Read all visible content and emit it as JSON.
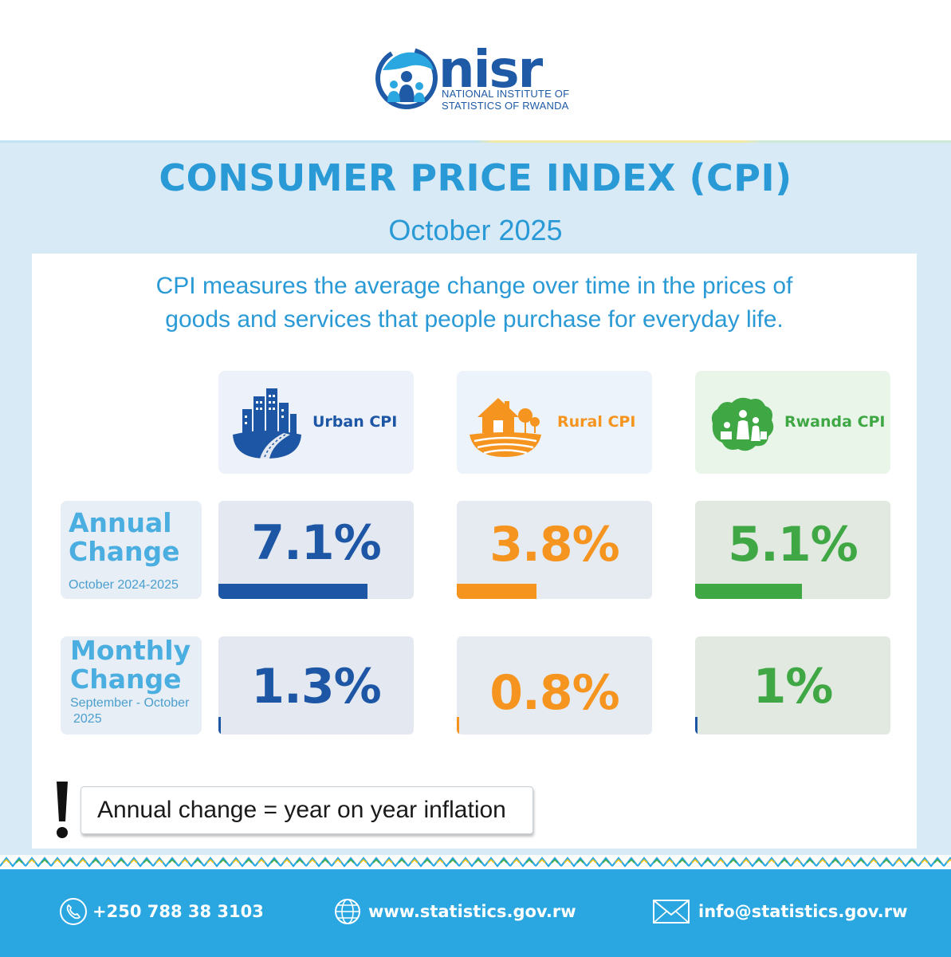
{
  "logo": {
    "wordmark": "nisr",
    "subtitle_line1": "NATIONAL INSTITUTE OF",
    "subtitle_line2": "STATISTICS OF RWANDA"
  },
  "title": "CONSUMER PRICE INDEX (CPI)",
  "subtitle": "October 2025",
  "description_line1": "CPI measures the average change over time in the prices of",
  "description_line2": "goods and services that people purchase for everyday life.",
  "colors": {
    "urban": "#1d56a4",
    "rural": "#f5951f",
    "rwanda": "#3fa845",
    "accent": "#2a9ad6"
  },
  "chart_data": {
    "type": "table",
    "title": "CONSUMER PRICE INDEX (CPI)",
    "columns": [
      "Urban CPI",
      "Rural CPI",
      "Rwanda CPI"
    ],
    "column_icons": [
      "city-icon",
      "farmhouse-icon",
      "rwanda-map-shoppers-icon"
    ],
    "rows": [
      {
        "name": "Annual Change",
        "label_line1": "Annual",
        "label_line2": "Change",
        "period": "October 2024-2025",
        "values": [
          7.1,
          3.8,
          5.1
        ],
        "labels": [
          "7.1%",
          "3.8%",
          "5.1%"
        ]
      },
      {
        "name": "Monthly Change",
        "label_line1": "Monthly",
        "label_line2": "Change",
        "period_line1": "September - October",
        "period_line2": "2025",
        "values": [
          1.3,
          0.8,
          1.0
        ],
        "labels": [
          "1.3%",
          "0.8%",
          "1%"
        ]
      }
    ],
    "bar_max": 9.3,
    "unit": "%"
  },
  "note": "Annual change = year on year inflation",
  "footer": {
    "phone": "+250 788 38 3103",
    "website": "www.statistics.gov.rw",
    "email": "info@statistics.gov.rw"
  }
}
